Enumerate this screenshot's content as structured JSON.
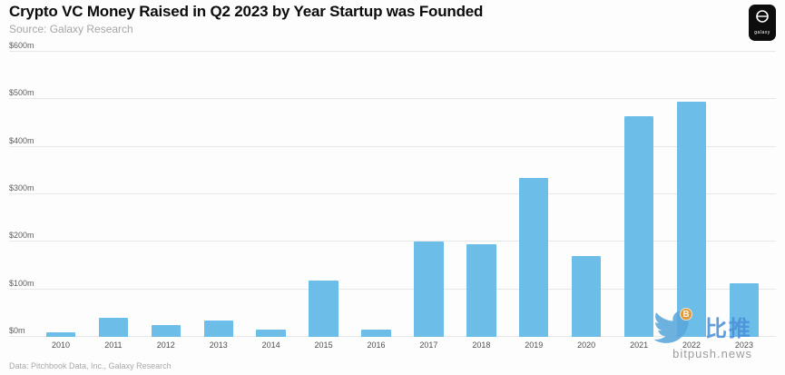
{
  "header": {
    "title": "Crypto VC Money Raised in Q2 2023 by Year Startup was Founded",
    "source": "Source: Galaxy Research",
    "logo_label": "galaxy"
  },
  "chart_data": {
    "type": "bar",
    "title": "Crypto VC Money Raised in Q2 2023 by Year Startup was Founded",
    "categories": [
      "2010",
      "2011",
      "2012",
      "2013",
      "2014",
      "2015",
      "2016",
      "2017",
      "2018",
      "2019",
      "2020",
      "2021",
      "2022",
      "2023"
    ],
    "values": [
      10,
      40,
      25,
      35,
      15,
      118,
      15,
      200,
      195,
      335,
      170,
      465,
      495,
      112
    ],
    "unit": "$m",
    "ylim": [
      0,
      600
    ],
    "ytick_labels": [
      "$0m",
      "$100m",
      "$200m",
      "$300m",
      "$400m",
      "$500m",
      "$600m"
    ],
    "grid": true,
    "legend": "none",
    "bar_color": "#6dbde9"
  },
  "footer": {
    "data_note": "Data: Pitchbook Data, Inc., Galaxy Research"
  },
  "watermark": {
    "brand_cn": "比推",
    "brand_domain": "bitpush.news",
    "bird_color": "#5aa7dc",
    "coin_color": "#f7931a",
    "cn_color": "#4a90d9"
  }
}
